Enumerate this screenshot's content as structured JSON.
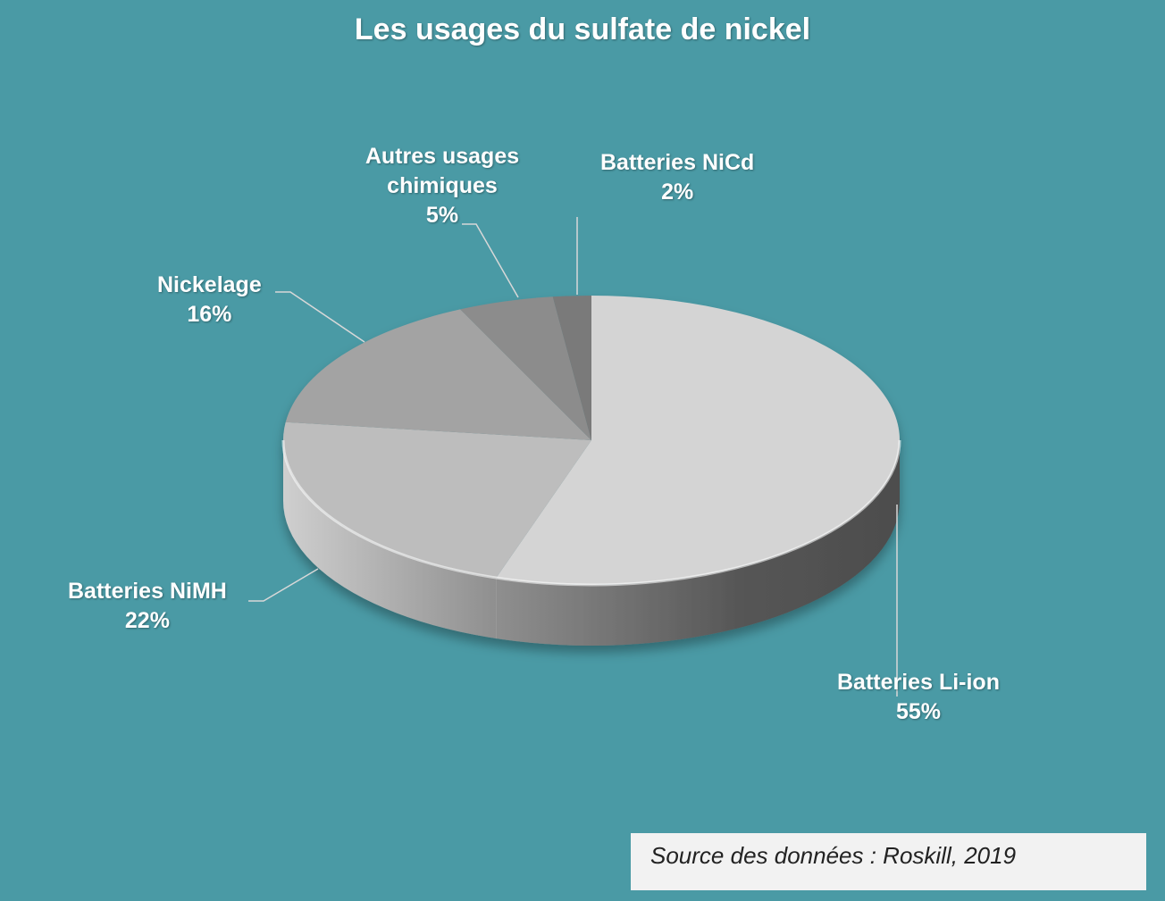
{
  "chart_data": {
    "type": "pie",
    "title": "Les usages du sulfate de nickel",
    "style": "3d",
    "slices": [
      {
        "label": "Batteries Li-ion",
        "value": 55,
        "value_label": "55%",
        "color": "#d4d4d4"
      },
      {
        "label": "Batteries NiMH",
        "value": 22,
        "value_label": "22%",
        "color": "#bdbdbd"
      },
      {
        "label": "Nickelage",
        "value": 16,
        "value_label": "16%",
        "color": "#a3a3a3"
      },
      {
        "label": "Autres usages chimiques",
        "value": 5,
        "value_label": "5%",
        "color": "#8c8c8c"
      },
      {
        "label": "Batteries NiCd",
        "value": 2,
        "value_label": "2%",
        "color": "#7a7a7a"
      }
    ],
    "start": "top",
    "direction": "clockwise",
    "background": "#4a9aa5"
  },
  "source": "Source des données : Roskill, 2019"
}
